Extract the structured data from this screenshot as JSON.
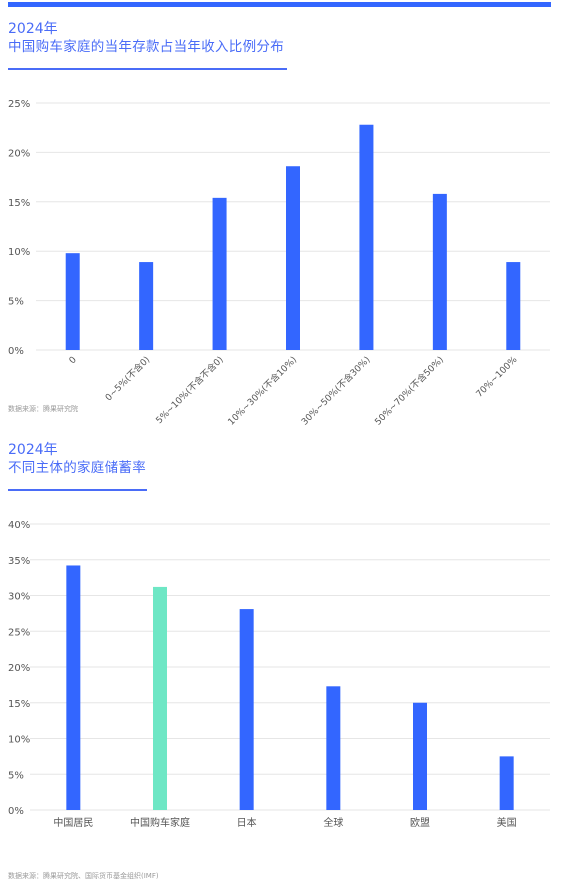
{
  "colors": {
    "accent": "#3366ff",
    "title": "#4a6cf7",
    "highlight": "#6ee7c5",
    "grid": "#e6e6e6",
    "axis_text": "#555555"
  },
  "chart_data": [
    {
      "type": "bar",
      "title_year": "2024年",
      "title": "中国购车家庭的当年存款占当年收入比例分布",
      "categories": [
        "0",
        "0~5%(不含0)",
        "5%~10%(不含不含0)",
        "10%~30%(不含10%)",
        "30%~50%(不含30%)",
        "50%~70%(不含50%)",
        "70%~100%"
      ],
      "values": [
        9.8,
        8.9,
        15.4,
        18.6,
        22.8,
        15.8,
        8.9
      ],
      "ylim": [
        0,
        25
      ],
      "yticks": [
        "0%",
        "5%",
        "10%",
        "15%",
        "20%",
        "25%"
      ],
      "grid": true,
      "source": "数据来源：腾果研究院"
    },
    {
      "type": "bar",
      "title_year": "2024年",
      "title": "不同主体的家庭储蓄率",
      "categories": [
        "中国居民",
        "中国购车家庭",
        "日本",
        "全球",
        "欧盟",
        "美国"
      ],
      "values": [
        34.2,
        31.2,
        28.1,
        17.3,
        15.0,
        7.5
      ],
      "highlight_index": 1,
      "ylim": [
        0,
        40
      ],
      "yticks": [
        "0%",
        "5%",
        "10%",
        "15%",
        "20%",
        "25%",
        "30%",
        "35%",
        "40%"
      ],
      "grid": true,
      "source": "数据来源：腾果研究院、国际货币基金组织(IMF)"
    }
  ]
}
